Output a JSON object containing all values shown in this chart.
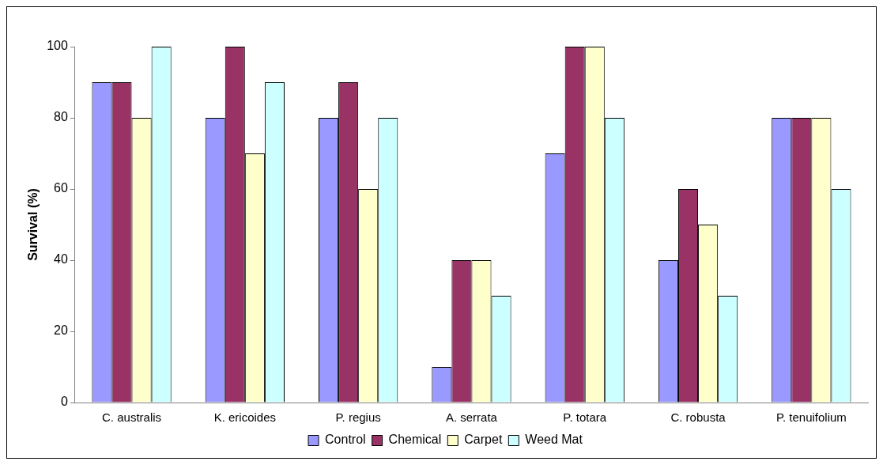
{
  "chart_data": {
    "type": "bar",
    "ylabel": "Survival (%)",
    "categories": [
      "C. australis",
      "K. ericoides",
      "P. regius",
      "A. serrata",
      "P. totara",
      "C. robusta",
      "P. tenuifolium"
    ],
    "series": [
      {
        "name": "Control",
        "color": "#9999ff",
        "values": [
          90,
          80,
          80,
          10,
          70,
          40,
          80
        ]
      },
      {
        "name": "Chemical",
        "color": "#993366",
        "values": [
          90,
          100,
          90,
          40,
          100,
          60,
          80
        ]
      },
      {
        "name": "Carpet",
        "color": "#ffffcc",
        "values": [
          80,
          70,
          60,
          40,
          100,
          50,
          80
        ]
      },
      {
        "name": "Weed Mat",
        "color": "#ccffff",
        "values": [
          100,
          90,
          80,
          30,
          80,
          30,
          60
        ]
      }
    ],
    "ylim": [
      0,
      100
    ],
    "yticks": [
      0,
      20,
      40,
      60,
      80,
      100
    ],
    "grid": false,
    "legend": "bottom"
  }
}
